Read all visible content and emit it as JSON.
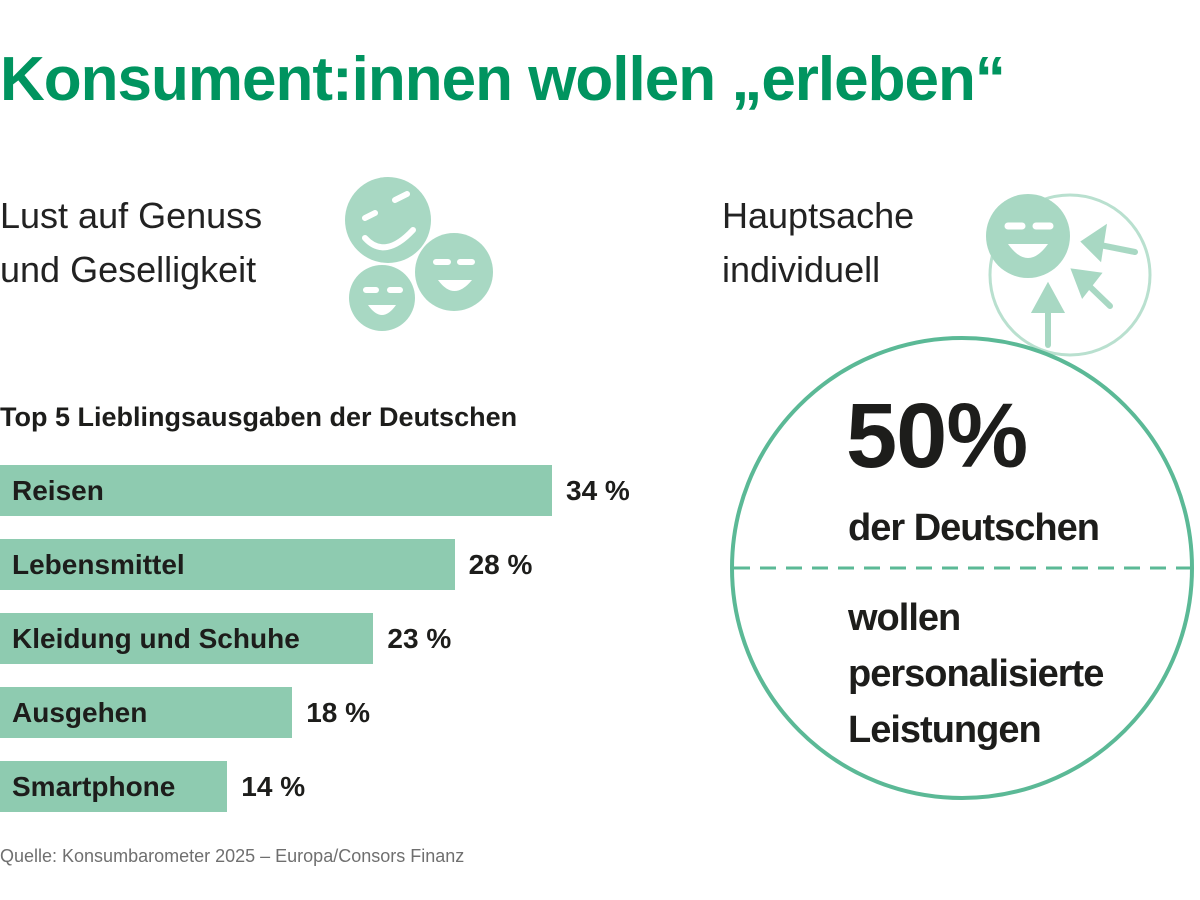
{
  "title": "Konsument:innen wollen „erleben“",
  "left_subtitle": [
    "Lust auf Genuss",
    "und Geselligkeit"
  ],
  "right_subtitle": [
    "Hauptsache",
    "individuell"
  ],
  "colors": {
    "brand_green": "#00945f",
    "bar_green": "#8ecbb0",
    "circle_green": "#5bb996",
    "light_green": "#a8d8c3"
  },
  "chart_data": {
    "type": "bar",
    "orientation": "horizontal",
    "title": "Top 5 Lieblingsausgaben der Deutschen",
    "categories": [
      "Reisen",
      "Lebensmittel",
      "Kleidung und Schuhe",
      "Ausgehen",
      "Smartphone"
    ],
    "values": [
      34,
      28,
      23,
      18,
      14
    ],
    "value_labels": [
      "34 %",
      "28 %",
      "23 %",
      "18 %",
      "14 %"
    ],
    "unit": "%",
    "xlim": [
      0,
      37
    ],
    "grid": false
  },
  "stat": {
    "value": "50%",
    "line1": "der Deutschen",
    "line2": [
      "wollen",
      "personalisierte",
      "Leistungen"
    ]
  },
  "source": "Quelle: Konsumbarometer 2025 – Europa/Consors Finanz"
}
